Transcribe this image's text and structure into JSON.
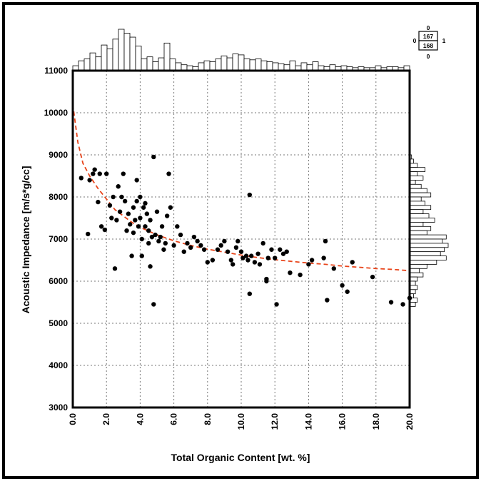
{
  "chart_data": {
    "type": "scatter",
    "xlabel": "Total Organic Content [wt. %]",
    "ylabel": "Acoustic Impedance [m/s*g/cc]",
    "xlim": [
      0,
      20
    ],
    "ylim": [
      3000,
      11000
    ],
    "x_ticks": [
      "0.0",
      "2.0",
      "4.0",
      "6.0",
      "8.0",
      "10.0",
      "12.0",
      "14.0",
      "16.0",
      "18.0",
      "20.0"
    ],
    "y_ticks": [
      "3000",
      "4000",
      "5000",
      "6000",
      "7000",
      "8000",
      "9000",
      "10000",
      "11000"
    ],
    "grid": true,
    "trend_color": "#e8441a",
    "point_color": "#000000",
    "trend_curve": [
      [
        0.0,
        10200
      ],
      [
        0.3,
        9300
      ],
      [
        0.6,
        8800
      ],
      [
        1.0,
        8500
      ],
      [
        1.5,
        8200
      ],
      [
        2.0,
        7950
      ],
      [
        2.5,
        7700
      ],
      [
        3.0,
        7550
      ],
      [
        3.5,
        7400
      ],
      [
        4.0,
        7280
      ],
      [
        5.0,
        7100
      ],
      [
        6.0,
        6960
      ],
      [
        7.0,
        6850
      ],
      [
        8.0,
        6760
      ],
      [
        9.0,
        6690
      ],
      [
        10.0,
        6620
      ],
      [
        11.0,
        6560
      ],
      [
        12.0,
        6510
      ],
      [
        13.0,
        6470
      ],
      [
        14.0,
        6430
      ],
      [
        15.0,
        6400
      ],
      [
        16.0,
        6360
      ],
      [
        17.0,
        6330
      ],
      [
        18.0,
        6300
      ],
      [
        19.0,
        6280
      ],
      [
        20.0,
        6250
      ]
    ],
    "points": [
      [
        0.5,
        8450
      ],
      [
        0.9,
        7120
      ],
      [
        1.0,
        8400
      ],
      [
        1.2,
        8550
      ],
      [
        1.3,
        8650
      ],
      [
        1.5,
        7880
      ],
      [
        1.6,
        8550
      ],
      [
        1.7,
        7300
      ],
      [
        1.9,
        7220
      ],
      [
        2.0,
        8550
      ],
      [
        2.2,
        7800
      ],
      [
        2.3,
        7500
      ],
      [
        2.4,
        8000
      ],
      [
        2.5,
        6300
      ],
      [
        2.6,
        7450
      ],
      [
        2.7,
        8250
      ],
      [
        2.8,
        7650
      ],
      [
        2.9,
        8000
      ],
      [
        3.0,
        8550
      ],
      [
        3.1,
        7900
      ],
      [
        3.2,
        7200
      ],
      [
        3.3,
        7600
      ],
      [
        3.4,
        7350
      ],
      [
        3.5,
        6600
      ],
      [
        3.6,
        7150
      ],
      [
        3.6,
        7750
      ],
      [
        3.7,
        7450
      ],
      [
        3.8,
        8400
      ],
      [
        3.8,
        7900
      ],
      [
        3.9,
        7300
      ],
      [
        4.0,
        8000
      ],
      [
        4.0,
        7500
      ],
      [
        4.1,
        7000
      ],
      [
        4.1,
        6600
      ],
      [
        4.2,
        7750
      ],
      [
        4.3,
        7850
      ],
      [
        4.3,
        7300
      ],
      [
        4.4,
        7600
      ],
      [
        4.5,
        6900
      ],
      [
        4.5,
        7200
      ],
      [
        4.6,
        6350
      ],
      [
        4.6,
        7450
      ],
      [
        4.7,
        7050
      ],
      [
        4.8,
        5450
      ],
      [
        4.8,
        8950
      ],
      [
        4.9,
        7100
      ],
      [
        5.0,
        7650
      ],
      [
        5.1,
        6950
      ],
      [
        5.2,
        7050
      ],
      [
        5.3,
        7300
      ],
      [
        5.4,
        6750
      ],
      [
        5.5,
        6900
      ],
      [
        5.6,
        7550
      ],
      [
        5.7,
        8550
      ],
      [
        5.8,
        7750
      ],
      [
        6.0,
        6850
      ],
      [
        6.2,
        7300
      ],
      [
        6.4,
        7100
      ],
      [
        6.6,
        6700
      ],
      [
        6.8,
        6900
      ],
      [
        7.0,
        6800
      ],
      [
        7.2,
        7050
      ],
      [
        7.4,
        6950
      ],
      [
        7.6,
        6850
      ],
      [
        7.8,
        6750
      ],
      [
        8.0,
        6450
      ],
      [
        8.3,
        6500
      ],
      [
        8.6,
        6750
      ],
      [
        8.8,
        6850
      ],
      [
        9.0,
        6950
      ],
      [
        9.2,
        6700
      ],
      [
        9.4,
        6500
      ],
      [
        9.5,
        6400
      ],
      [
        9.7,
        6800
      ],
      [
        9.8,
        6950
      ],
      [
        10.0,
        6700
      ],
      [
        10.1,
        6550
      ],
      [
        10.3,
        6600
      ],
      [
        10.4,
        6500
      ],
      [
        10.5,
        8050
      ],
      [
        10.6,
        6600
      ],
      [
        10.8,
        6450
      ],
      [
        11.0,
        6650
      ],
      [
        11.1,
        6400
      ],
      [
        11.3,
        6900
      ],
      [
        11.5,
        6050
      ],
      [
        11.6,
        6550
      ],
      [
        11.8,
        6750
      ],
      [
        12.0,
        6550
      ],
      [
        12.1,
        5450
      ],
      [
        12.3,
        6750
      ],
      [
        12.5,
        6650
      ],
      [
        12.7,
        6700
      ],
      [
        12.9,
        6200
      ],
      [
        13.5,
        6150
      ],
      [
        14.0,
        6400
      ],
      [
        14.2,
        6500
      ],
      [
        14.9,
        6550
      ],
      [
        15.1,
        5550
      ],
      [
        15.5,
        6300
      ],
      [
        16.0,
        5900
      ],
      [
        16.3,
        5750
      ],
      [
        16.6,
        6450
      ],
      [
        17.8,
        6100
      ],
      [
        18.9,
        5500
      ],
      [
        19.6,
        5450
      ],
      [
        20.0,
        5600
      ],
      [
        10.5,
        5700
      ],
      [
        11.5,
        6000
      ],
      [
        15.0,
        6950
      ]
    ],
    "top_histogram": [
      5,
      10,
      12,
      18,
      14,
      26,
      22,
      32,
      42,
      38,
      34,
      25,
      12,
      14,
      9,
      13,
      28,
      12,
      8,
      6,
      5,
      4,
      8,
      10,
      9,
      12,
      15,
      13,
      17,
      16,
      12,
      11,
      12,
      10,
      9,
      8,
      7,
      6,
      10,
      5,
      8,
      6,
      9,
      5,
      4,
      6,
      4,
      5,
      4,
      3,
      4,
      3,
      3,
      5,
      3,
      4,
      4,
      3,
      5
    ],
    "right_histogram": [
      [
        8950,
        1
      ],
      [
        8850,
        2
      ],
      [
        8750,
        4
      ],
      [
        8650,
        8
      ],
      [
        8550,
        4
      ],
      [
        8450,
        7
      ],
      [
        8350,
        3
      ],
      [
        8250,
        6
      ],
      [
        8150,
        9
      ],
      [
        8050,
        11
      ],
      [
        7950,
        6
      ],
      [
        7850,
        8
      ],
      [
        7750,
        11
      ],
      [
        7650,
        7
      ],
      [
        7550,
        10
      ],
      [
        7450,
        13
      ],
      [
        7350,
        7
      ],
      [
        7250,
        11
      ],
      [
        7150,
        9
      ],
      [
        7050,
        19
      ],
      [
        6950,
        17
      ],
      [
        6850,
        20
      ],
      [
        6750,
        18
      ],
      [
        6650,
        16
      ],
      [
        6550,
        19
      ],
      [
        6450,
        14
      ],
      [
        6350,
        9
      ],
      [
        6250,
        5
      ],
      [
        6150,
        7
      ],
      [
        6050,
        4
      ],
      [
        5950,
        3
      ],
      [
        5850,
        4
      ],
      [
        5750,
        3
      ],
      [
        5650,
        2
      ],
      [
        5550,
        4
      ],
      [
        5450,
        3
      ]
    ],
    "count_box": {
      "top": "0",
      "upper": "167",
      "lower": "168",
      "bottom": "0",
      "left": "0",
      "right": "1"
    }
  }
}
